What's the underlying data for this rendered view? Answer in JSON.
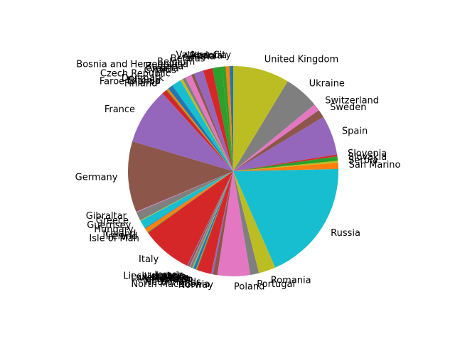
{
  "chart_data": {
    "type": "pie",
    "start_angle_deg": 90,
    "direction": "counterclockwise",
    "slices": [
      {
        "label": "Vatican City",
        "value": 0.6,
        "color": "#1f77b4"
      },
      {
        "label": "Andorra",
        "value": 0.6,
        "color": "#ff7f0e"
      },
      {
        "label": "Albania",
        "value": 0.6,
        "color": "#2ca02c"
      },
      {
        "label": "Austria",
        "value": 1.5,
        "color": "#2ca02c"
      },
      {
        "label": "Belarus",
        "value": 1.5,
        "color": "#d62728"
      },
      {
        "label": "Belgium",
        "value": 1.5,
        "color": "#9467bd"
      },
      {
        "label": "Bosnia and Herzegovina",
        "value": 0.5,
        "color": "#8c564b"
      },
      {
        "label": "Bulgaria",
        "value": 1.0,
        "color": "#e377c2"
      },
      {
        "label": "Croatia",
        "value": 0.5,
        "color": "#7f7f7f"
      },
      {
        "label": "Cyprus",
        "value": 0.4,
        "color": "#bcbd22"
      },
      {
        "label": "Czech Republic",
        "value": 1.5,
        "color": "#17becf"
      },
      {
        "label": "Denmark",
        "value": 0.8,
        "color": "#1f77b4"
      },
      {
        "label": "Estonia",
        "value": 0.3,
        "color": "#ff7f0e"
      },
      {
        "label": "Faroe Islands",
        "value": 0.1,
        "color": "#2ca02c"
      },
      {
        "label": "Finland",
        "value": 0.8,
        "color": "#d62728"
      },
      {
        "label": "France",
        "value": 9.0,
        "color": "#9467bd"
      },
      {
        "label": "Germany",
        "value": 11.3,
        "color": "#8c564b"
      },
      {
        "label": "Gibraltar",
        "value": 0.1,
        "color": "#e377c2"
      },
      {
        "label": "Greece",
        "value": 1.4,
        "color": "#7f7f7f"
      },
      {
        "label": "Guernsey",
        "value": 0.1,
        "color": "#bcbd22"
      },
      {
        "label": "Hungary",
        "value": 1.3,
        "color": "#17becf"
      },
      {
        "label": "Iceland",
        "value": 0.1,
        "color": "#1f77b4"
      },
      {
        "label": "Ireland",
        "value": 0.7,
        "color": "#ff7f0e"
      },
      {
        "label": "Isle of Man",
        "value": 0.1,
        "color": "#2ca02c"
      },
      {
        "label": "Italy",
        "value": 8.1,
        "color": "#d62728"
      },
      {
        "label": "Jersey",
        "value": 0.1,
        "color": "#9467bd"
      },
      {
        "label": "Latvia",
        "value": 0.3,
        "color": "#8c564b"
      },
      {
        "label": "Liechtenstein",
        "value": 0.1,
        "color": "#e377c2"
      },
      {
        "label": "Lithuania",
        "value": 0.4,
        "color": "#7f7f7f"
      },
      {
        "label": "Luxembourg",
        "value": 0.1,
        "color": "#bcbd22"
      },
      {
        "label": "Malta",
        "value": 0.1,
        "color": "#17becf"
      },
      {
        "label": "Moldova",
        "value": 0.4,
        "color": "#1f77b4"
      },
      {
        "label": "Monaco",
        "value": 0.1,
        "color": "#ff7f0e"
      },
      {
        "label": "Montenegro",
        "value": 0.1,
        "color": "#2ca02c"
      },
      {
        "label": "Netherlands",
        "value": 2.3,
        "color": "#d62728"
      },
      {
        "label": "North Macedonia",
        "value": 0.3,
        "color": "#9467bd"
      },
      {
        "label": "Norway",
        "value": 0.7,
        "color": "#8c564b"
      },
      {
        "label": "Poland",
        "value": 5.2,
        "color": "#e377c2"
      },
      {
        "label": "Portugal",
        "value": 1.4,
        "color": "#7f7f7f"
      },
      {
        "label": "Romania",
        "value": 2.7,
        "color": "#bcbd22"
      },
      {
        "label": "Russia",
        "value": 19.5,
        "color": "#17becf"
      },
      {
        "label": "San Marino",
        "value": 1.0,
        "color": "#ff7f0e"
      },
      {
        "label": "Serbia",
        "value": 0.3,
        "color": "#bcbd22"
      },
      {
        "label": "Slovakia",
        "value": 0.7,
        "color": "#2ca02c"
      },
      {
        "label": "Slovenia",
        "value": 0.3,
        "color": "#d62728"
      },
      {
        "label": "Spain",
        "value": 6.3,
        "color": "#9467bd"
      },
      {
        "label": "Sweden",
        "value": 1.3,
        "color": "#8c564b"
      },
      {
        "label": "Switzerland",
        "value": 1.1,
        "color": "#e377c2"
      },
      {
        "label": "Ukraine",
        "value": 5.6,
        "color": "#7f7f7f"
      },
      {
        "label": "United Kingdom",
        "value": 9.0,
        "color": "#bcbd22"
      }
    ]
  }
}
